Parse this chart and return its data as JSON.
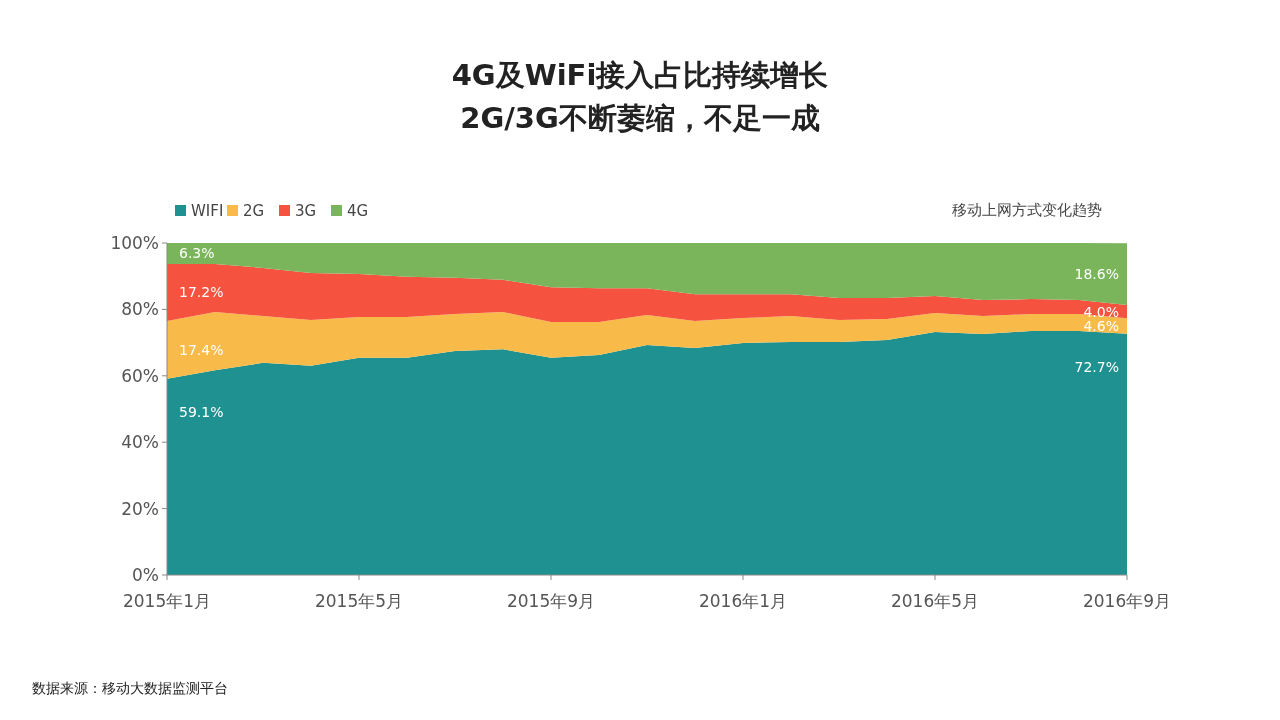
{
  "chart_data": {
    "type": "area",
    "stacked": true,
    "title": "4G及WiFi接入占比持续增长\n2G/3G不断萎缩，不足一成",
    "subtitle": "移动上网方式变化趋势",
    "categories": [
      "2015年1月",
      null,
      null,
      null,
      "2015年5月",
      null,
      null,
      null,
      "2015年9月",
      null,
      null,
      null,
      "2016年1月",
      null,
      null,
      null,
      "2016年5月",
      null,
      null,
      null,
      "2016年9月"
    ],
    "series": [
      {
        "name": "WIFI",
        "color": "#1f9190",
        "values": [
          59.1,
          61.7,
          63.9,
          63.0,
          65.4,
          65.4,
          67.5,
          68.0,
          65.4,
          66.3,
          69.3,
          68.4,
          69.9,
          70.2,
          70.2,
          70.8,
          73.2,
          72.6,
          73.5,
          73.5,
          72.7
        ],
        "value_labels": [
          "59.1%",
          null,
          null,
          null,
          null,
          null,
          null,
          null,
          null,
          null,
          null,
          null,
          null,
          null,
          null,
          null,
          null,
          null,
          null,
          null,
          "72.7%"
        ]
      },
      {
        "name": "2G",
        "color": "#f8bb4a",
        "values": [
          17.4,
          17.5,
          14.1,
          13.8,
          12.3,
          12.3,
          11.1,
          11.2,
          10.8,
          9.9,
          9.0,
          8.1,
          7.5,
          7.8,
          6.6,
          6.3,
          5.7,
          5.4,
          5.1,
          5.1,
          4.6
        ],
        "value_labels": [
          "17.4%",
          null,
          null,
          null,
          null,
          null,
          null,
          null,
          null,
          null,
          null,
          null,
          null,
          null,
          null,
          null,
          null,
          null,
          null,
          null,
          "4.6%"
        ]
      },
      {
        "name": "3G",
        "color": "#f5533f",
        "values": [
          17.2,
          14.5,
          14.5,
          14.2,
          13.0,
          12.1,
          10.9,
          9.7,
          10.5,
          10.2,
          8.1,
          8.1,
          7.2,
          6.6,
          6.6,
          6.3,
          5.1,
          4.8,
          4.5,
          4.2,
          4.0
        ],
        "value_labels": [
          "17.2%",
          null,
          null,
          null,
          null,
          null,
          null,
          null,
          null,
          null,
          null,
          null,
          null,
          null,
          null,
          null,
          null,
          null,
          null,
          null,
          "4.0%"
        ]
      },
      {
        "name": "4G",
        "color": "#7ab55c",
        "values": [
          6.3,
          6.3,
          7.5,
          9.0,
          9.3,
          10.2,
          10.5,
          11.1,
          13.3,
          13.6,
          13.6,
          15.4,
          15.4,
          15.4,
          16.6,
          16.6,
          16.0,
          17.2,
          16.9,
          17.2,
          18.6
        ],
        "value_labels": [
          "6.3%",
          null,
          null,
          null,
          null,
          null,
          null,
          null,
          null,
          null,
          null,
          null,
          null,
          null,
          null,
          null,
          null,
          null,
          null,
          null,
          "18.6%"
        ]
      }
    ],
    "ylim": [
      0,
      100
    ],
    "yticks": [
      {
        "value": 0,
        "label": "0%"
      },
      {
        "value": 20,
        "label": "20%"
      },
      {
        "value": 40,
        "label": "40%"
      },
      {
        "value": 60,
        "label": "60%"
      },
      {
        "value": 80,
        "label": "80%"
      },
      {
        "value": 100,
        "label": "100%"
      }
    ],
    "grid": false,
    "legend": "top left",
    "annotations": [
      "数据来源：移动大数据监测平台"
    ]
  }
}
